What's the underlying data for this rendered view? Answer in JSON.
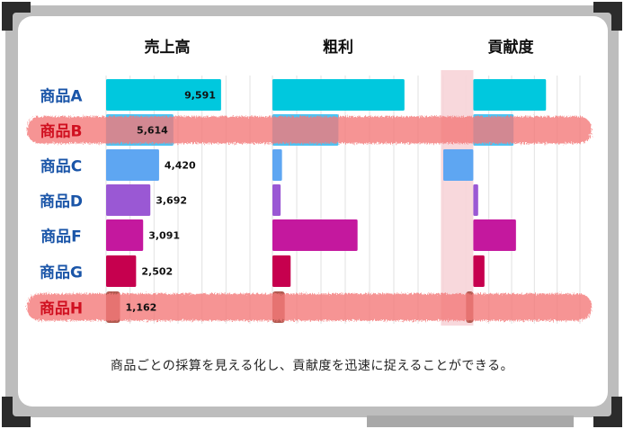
{
  "colors": {
    "frame": "#bdbdbd",
    "corner": "#2b2b2b",
    "label_blue": "#1a55a8",
    "label_red": "#d01020",
    "highlight_stroke": "#f47a7a",
    "highlight_column": "#f7d4d8",
    "tray": "#a8a8a8"
  },
  "caption": "商品ごとの採算を見える化し、貢献度を迅速に捉えることができる。",
  "chart_data": {
    "type": "bar",
    "orientation": "horizontal",
    "grid": true,
    "categories": [
      "商品A",
      "商品B",
      "商品C",
      "商品D",
      "商品F",
      "商品G",
      "商品H"
    ],
    "highlighted_categories": [
      "商品B",
      "商品H"
    ],
    "highlighted_panel": "貢献度",
    "bar_colors": [
      "#00c8de",
      "#4cc4f4",
      "#5ea6f2",
      "#9a58d4",
      "#c4189e",
      "#c6004e",
      "#b05a50"
    ],
    "panels": [
      {
        "title": "売上高",
        "values": [
          9591,
          5614,
          4420,
          3692,
          3091,
          2502,
          1162
        ],
        "value_labels": [
          "9,591",
          "5,614",
          "4,420",
          "3,692",
          "3,091",
          "2,502",
          "1,162"
        ],
        "xlim": [
          0,
          12000
        ]
      },
      {
        "title": "粗利",
        "values": [
          2900,
          1450,
          210,
          180,
          1870,
          400,
          270
        ],
        "xlim": [
          0,
          3200
        ]
      },
      {
        "title": "貢献度",
        "values": [
          1500,
          830,
          -620,
          100,
          880,
          230,
          -150
        ],
        "xlim": [
          -620,
          2200
        ]
      }
    ]
  }
}
